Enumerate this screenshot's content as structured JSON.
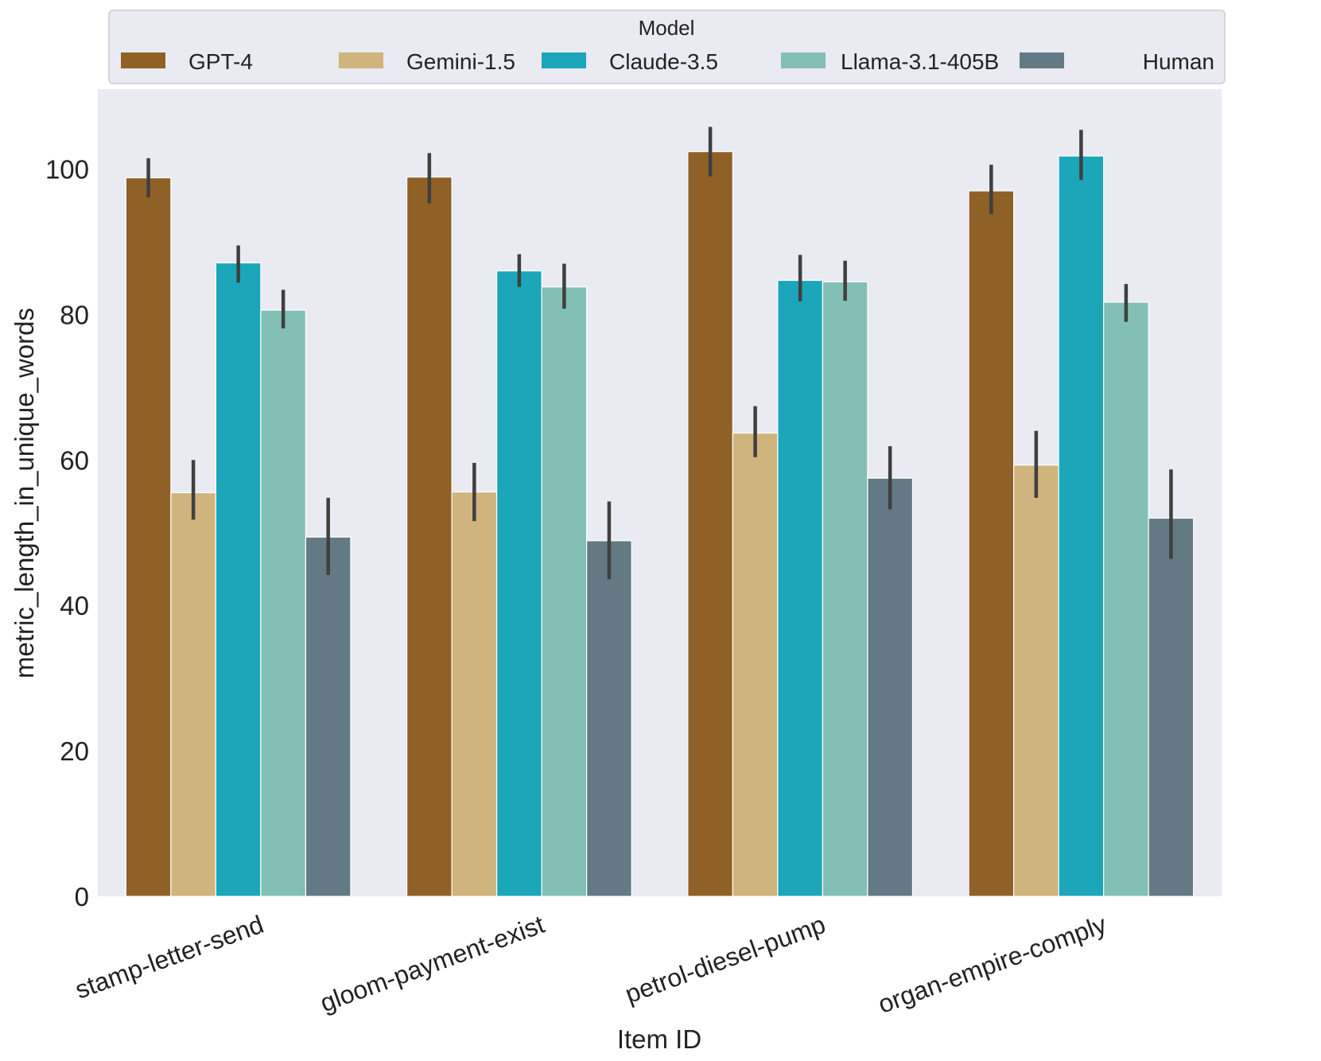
{
  "chart_data": {
    "type": "bar",
    "title": "",
    "xlabel": "Item ID",
    "ylabel": "metric_length_in_unique_words",
    "ylim": [
      0,
      111
    ],
    "yticks": [
      0,
      20,
      40,
      60,
      80,
      100
    ],
    "grid": false,
    "legend": {
      "title": "Model",
      "position": "top",
      "entries": [
        "GPT-4",
        "Gemini-1.5",
        "Claude-3.5",
        "Llama-3.1-405B",
        "Human"
      ]
    },
    "categories": [
      "stamp-letter-send",
      "gloom-payment-exist",
      "petrol-diesel-pump",
      "organ-empire-comply"
    ],
    "series": [
      {
        "name": "GPT-4",
        "color": "#8f6127",
        "values": [
          98.8,
          98.9,
          102.4,
          97.0
        ],
        "ci_low": [
          96.1,
          95.3,
          99.0,
          93.8
        ],
        "ci_high": [
          101.5,
          102.2,
          105.8,
          100.6
        ]
      },
      {
        "name": "Gemini-1.5",
        "color": "#cfb47d",
        "values": [
          55.5,
          55.6,
          63.7,
          59.3
        ],
        "ci_low": [
          51.8,
          51.6,
          60.4,
          54.8
        ],
        "ci_high": [
          60.0,
          59.6,
          67.4,
          64.0
        ]
      },
      {
        "name": "Claude-3.5",
        "color": "#1ba6ba",
        "values": [
          87.1,
          86.0,
          84.7,
          101.8
        ],
        "ci_low": [
          84.4,
          83.8,
          81.8,
          98.5
        ],
        "ci_high": [
          89.5,
          88.3,
          88.2,
          105.4
        ]
      },
      {
        "name": "Llama-3.1-405B",
        "color": "#82bfb4",
        "values": [
          80.6,
          83.8,
          84.5,
          81.7
        ],
        "ci_low": [
          78.1,
          80.8,
          81.9,
          79.0
        ],
        "ci_high": [
          83.4,
          87.0,
          87.4,
          84.2
        ]
      },
      {
        "name": "Human",
        "color": "#637a84",
        "values": [
          49.4,
          48.9,
          57.5,
          52.0
        ],
        "ci_low": [
          44.2,
          43.6,
          53.2,
          46.4
        ],
        "ci_high": [
          54.8,
          54.3,
          61.9,
          58.7
        ]
      }
    ]
  }
}
